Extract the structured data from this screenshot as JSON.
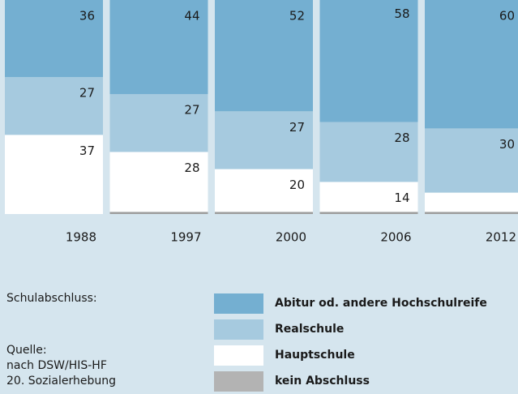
{
  "chart_data": {
    "type": "bar",
    "stacked": true,
    "categories": [
      "1988",
      "1997",
      "2000",
      "2006",
      "2012"
    ],
    "series": [
      {
        "name": "Abitur od. andere Hochschulreife",
        "color": "#74afd1",
        "values": [
          36,
          44,
          52,
          58,
          60
        ]
      },
      {
        "name": "Realschule",
        "color": "#a6cadf",
        "values": [
          27,
          27,
          27,
          28,
          30
        ]
      },
      {
        "name": "Hauptschule",
        "color": "#ffffff",
        "values": [
          37,
          28,
          20,
          14,
          9
        ]
      },
      {
        "name": "kein Abschluss",
        "color": "#9e9e9e",
        "values": [
          null,
          1,
          1,
          1,
          1
        ]
      }
    ],
    "ylim": [
      0,
      100
    ],
    "legend_title": "Schulabschluss:",
    "source": [
      "Quelle:",
      "nach DSW/HIS-HF",
      "20. Sozialerhebung"
    ]
  }
}
